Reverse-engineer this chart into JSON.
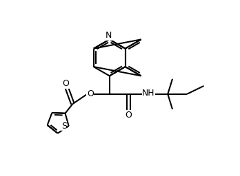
{
  "figsize": [
    3.48,
    2.56
  ],
  "dpi": 100,
  "lw": 1.5,
  "ring_r": 0.78,
  "lc_x": 4.55,
  "lc_y": 5.05,
  "th_r": 0.48,
  "xlim": [
    0,
    10
  ],
  "ylim": [
    0,
    7.5
  ]
}
